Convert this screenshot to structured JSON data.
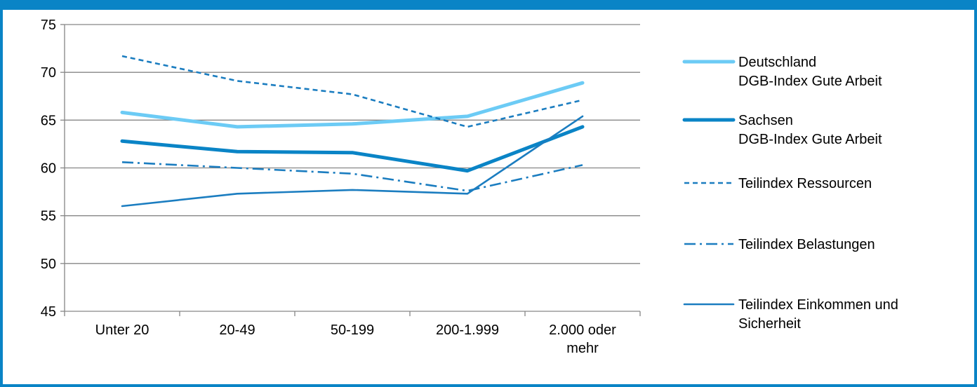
{
  "chart_data": {
    "type": "line",
    "title": "",
    "xlabel": "",
    "ylabel": "",
    "categories": [
      [
        "Unter 20"
      ],
      [
        "20-49"
      ],
      [
        "50-199"
      ],
      [
        "200-1.999"
      ],
      [
        "2.000 oder",
        "mehr"
      ]
    ],
    "yticks": [
      "45",
      "50",
      "55",
      "60",
      "65",
      "70",
      "75"
    ],
    "ylim": [
      45,
      75
    ],
    "grid": true,
    "legend_position": "right",
    "series": [
      {
        "name": [
          "Deutschland",
          "DGB-Index Gute Arbeit"
        ],
        "values": [
          65.8,
          64.3,
          64.6,
          65.4,
          68.9
        ],
        "color": "#6CCBF5",
        "style": "solid",
        "weight": "thick"
      },
      {
        "name": [
          "Sachsen",
          "DGB-Index Gute Arbeit"
        ],
        "values": [
          62.8,
          61.7,
          61.6,
          59.7,
          64.3
        ],
        "color": "#0A84C6",
        "style": "solid",
        "weight": "thick"
      },
      {
        "name": [
          "Teilindex Ressourcen"
        ],
        "values": [
          71.7,
          69.1,
          67.7,
          64.3,
          67.1
        ],
        "color": "#1B7DC0",
        "style": "dashed",
        "weight": "thin"
      },
      {
        "name": [
          "Teilindex Belastungen"
        ],
        "values": [
          60.6,
          60.0,
          59.4,
          57.6,
          60.3
        ],
        "color": "#1B7DC0",
        "style": "dashdot",
        "weight": "thin"
      },
      {
        "name": [
          "Teilindex Einkommen und",
          "Sicherheit"
        ],
        "values": [
          56.0,
          57.3,
          57.7,
          57.3,
          65.4
        ],
        "color": "#1B7DC0",
        "style": "solid",
        "weight": "thin"
      }
    ],
    "colors": {
      "frame": "#0A84C6",
      "axis": "#868686",
      "grid": "#868686"
    }
  }
}
